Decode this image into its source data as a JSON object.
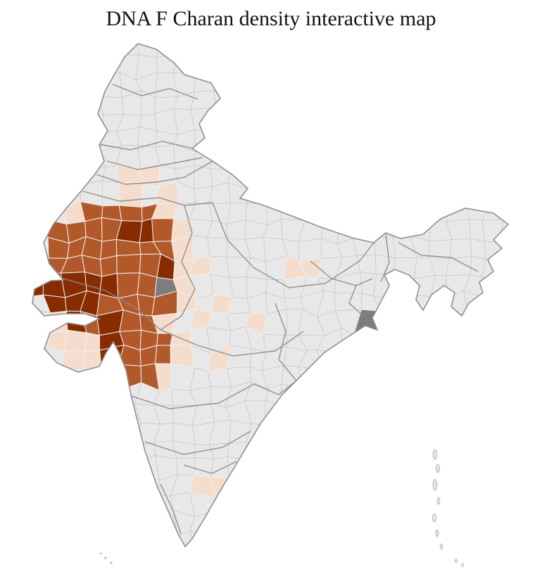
{
  "title": "DNA F Charan density interactive map",
  "map": {
    "map_name": "india-districts",
    "palette": {
      "sea": "#ffffff",
      "base": "#e8e8e8",
      "district_border": "#c0c0c0",
      "cell_border": "#f2efec",
      "state_border": "#8c8c8c",
      "outline": "#909090",
      "low": "#f4ddcd",
      "mid": "#b2592b",
      "high": "#872c00",
      "na": "#7d7d7d"
    },
    "legend_levels": [
      "low",
      "mid",
      "high",
      "na"
    ],
    "cells": [
      {
        "c": 5,
        "r": 7,
        "l": "low"
      },
      {
        "c": 6,
        "r": 7,
        "l": "low"
      },
      {
        "c": 5,
        "r": 8,
        "l": "low"
      },
      {
        "c": 7,
        "r": 8,
        "l": "low"
      },
      {
        "c": 2,
        "r": 9,
        "l": "low"
      },
      {
        "c": 7,
        "r": 9,
        "l": "low"
      },
      {
        "c": 8,
        "r": 10,
        "l": "low"
      },
      {
        "c": 8,
        "r": 11,
        "l": "low"
      },
      {
        "c": 8,
        "r": 12,
        "l": "low"
      },
      {
        "c": 9,
        "r": 12,
        "l": "low"
      },
      {
        "c": 14,
        "r": 12,
        "l": "low"
      },
      {
        "c": 15,
        "r": 12,
        "l": "low"
      },
      {
        "c": 8,
        "r": 13,
        "l": "low"
      },
      {
        "c": 8,
        "r": 14,
        "l": "low"
      },
      {
        "c": 10,
        "r": 14,
        "l": "low"
      },
      {
        "c": 1,
        "r": 15,
        "l": "low"
      },
      {
        "c": 7,
        "r": 15,
        "l": "low"
      },
      {
        "c": 9,
        "r": 15,
        "l": "low"
      },
      {
        "c": 12,
        "r": 15,
        "l": "low"
      },
      {
        "c": 1,
        "r": 16,
        "l": "low"
      },
      {
        "c": 2,
        "r": 16,
        "l": "low"
      },
      {
        "c": 3,
        "r": 16,
        "l": "low"
      },
      {
        "c": 8,
        "r": 16,
        "l": "low"
      },
      {
        "c": 2,
        "r": 17,
        "l": "low"
      },
      {
        "c": 3,
        "r": 17,
        "l": "low"
      },
      {
        "c": 8,
        "r": 17,
        "l": "low"
      },
      {
        "c": 10,
        "r": 17,
        "l": "low"
      },
      {
        "c": 7,
        "r": 18,
        "l": "low"
      },
      {
        "c": 9,
        "r": 24,
        "l": "low"
      },
      {
        "c": 10,
        "r": 24,
        "l": "low"
      },
      {
        "c": 3,
        "r": 9,
        "l": "mid"
      },
      {
        "c": 4,
        "r": 9,
        "l": "mid"
      },
      {
        "c": 5,
        "r": 9,
        "l": "mid"
      },
      {
        "c": 6,
        "r": 9,
        "l": "mid"
      },
      {
        "c": 1,
        "r": 10,
        "l": "mid"
      },
      {
        "c": 2,
        "r": 10,
        "l": "mid"
      },
      {
        "c": 3,
        "r": 10,
        "l": "mid"
      },
      {
        "c": 4,
        "r": 10,
        "l": "mid"
      },
      {
        "c": 7,
        "r": 10,
        "l": "mid"
      },
      {
        "c": 1,
        "r": 11,
        "l": "mid"
      },
      {
        "c": 2,
        "r": 11,
        "l": "mid"
      },
      {
        "c": 3,
        "r": 11,
        "l": "mid"
      },
      {
        "c": 4,
        "r": 11,
        "l": "mid"
      },
      {
        "c": 5,
        "r": 11,
        "l": "mid"
      },
      {
        "c": 6,
        "r": 11,
        "l": "mid"
      },
      {
        "c": 7,
        "r": 11,
        "l": "mid"
      },
      {
        "c": 1,
        "r": 12,
        "l": "mid"
      },
      {
        "c": 2,
        "r": 12,
        "l": "mid"
      },
      {
        "c": 3,
        "r": 12,
        "l": "mid"
      },
      {
        "c": 4,
        "r": 12,
        "l": "mid"
      },
      {
        "c": 5,
        "r": 12,
        "l": "mid"
      },
      {
        "c": 6,
        "r": 12,
        "l": "mid"
      },
      {
        "c": 5,
        "r": 13,
        "l": "mid"
      },
      {
        "c": 6,
        "r": 13,
        "l": "mid"
      },
      {
        "c": 4,
        "r": 14,
        "l": "mid"
      },
      {
        "c": 5,
        "r": 14,
        "l": "mid"
      },
      {
        "c": 6,
        "r": 14,
        "l": "mid"
      },
      {
        "c": 7,
        "r": 14,
        "l": "mid"
      },
      {
        "c": 3,
        "r": 15,
        "l": "mid"
      },
      {
        "c": 5,
        "r": 15,
        "l": "mid"
      },
      {
        "c": 6,
        "r": 15,
        "l": "mid"
      },
      {
        "c": 5,
        "r": 16,
        "l": "mid"
      },
      {
        "c": 6,
        "r": 16,
        "l": "mid"
      },
      {
        "c": 7,
        "r": 16,
        "l": "mid"
      },
      {
        "c": 5,
        "r": 17,
        "l": "mid"
      },
      {
        "c": 6,
        "r": 17,
        "l": "mid"
      },
      {
        "c": 7,
        "r": 17,
        "l": "mid"
      },
      {
        "c": 4,
        "r": 18,
        "l": "mid"
      },
      {
        "c": 5,
        "r": 18,
        "l": "mid"
      },
      {
        "c": 6,
        "r": 18,
        "l": "mid"
      },
      {
        "c": 5,
        "r": 10,
        "l": "high"
      },
      {
        "c": 6,
        "r": 10,
        "l": "high"
      },
      {
        "c": 7,
        "r": 12,
        "l": "high"
      },
      {
        "c": 0,
        "r": 13,
        "l": "high"
      },
      {
        "c": 1,
        "r": 13,
        "l": "high"
      },
      {
        "c": 2,
        "r": 13,
        "l": "high"
      },
      {
        "c": 3,
        "r": 13,
        "l": "high"
      },
      {
        "c": 4,
        "r": 13,
        "l": "high"
      },
      {
        "c": 1,
        "r": 14,
        "l": "high"
      },
      {
        "c": 2,
        "r": 14,
        "l": "high"
      },
      {
        "c": 3,
        "r": 14,
        "l": "high"
      },
      {
        "c": 2,
        "r": 15,
        "l": "high"
      },
      {
        "c": 4,
        "r": 15,
        "l": "high"
      },
      {
        "c": 4,
        "r": 16,
        "l": "high"
      },
      {
        "c": 4,
        "r": 17,
        "l": "high"
      },
      {
        "c": 7,
        "r": 13,
        "l": "na"
      },
      {
        "c": 18,
        "r": 15,
        "l": "na"
      }
    ]
  }
}
